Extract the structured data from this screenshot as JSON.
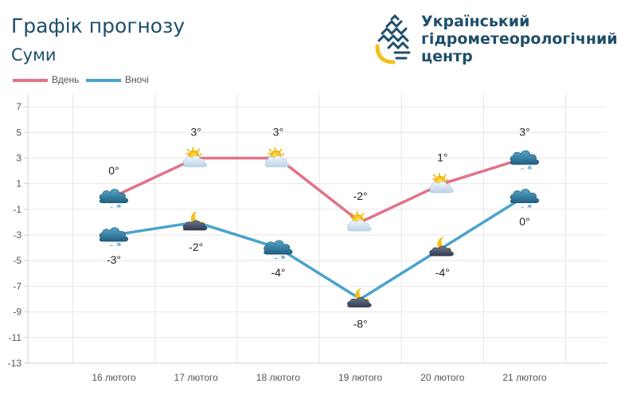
{
  "header": {
    "title": "Графік прогнозу",
    "city": "Суми"
  },
  "organization": {
    "name_lines": [
      "Український",
      "гідрометеорологічний",
      "центр"
    ],
    "logo_icon": "water-drop-logo-icon",
    "colors": {
      "primary": "#1e4e6b",
      "accent": "#f2c01e"
    }
  },
  "chart_data": {
    "type": "line",
    "categories": [
      "16 лютого",
      "17 лютого",
      "18 лютого",
      "19 лютого",
      "20 лютого",
      "21 лютого"
    ],
    "ylim": [
      -13,
      8
    ],
    "yticks": [
      7,
      5,
      3,
      1,
      -1,
      -3,
      -5,
      -7,
      -9,
      -11,
      -13
    ],
    "grid": true,
    "legend_position": "top-left",
    "series": [
      {
        "name": "Вдень",
        "color": "#e0738a",
        "values": [
          0,
          3,
          3,
          -2,
          1,
          3
        ],
        "labels": [
          "0°",
          "3°",
          "3°",
          "-2°",
          "1°",
          "3°"
        ],
        "icons": [
          "cloud-snow-icon",
          "sun-cloud-icon",
          "sun-cloud-icon",
          "sun-cloud-icon",
          "sun-cloud-icon",
          "cloud-snow-icon"
        ]
      },
      {
        "name": "Вночі",
        "color": "#4aa3cc",
        "values": [
          -3,
          -2,
          -4,
          -8,
          -4,
          0
        ],
        "labels": [
          "-3°",
          "-2°",
          "-4°",
          "-8°",
          "-4°",
          "0°"
        ],
        "icons": [
          "cloud-snow-icon",
          "moon-cloud-icon",
          "cloud-snow-icon",
          "moon-cloud-icon",
          "moon-cloud-icon",
          "cloud-snow-icon"
        ]
      }
    ]
  }
}
